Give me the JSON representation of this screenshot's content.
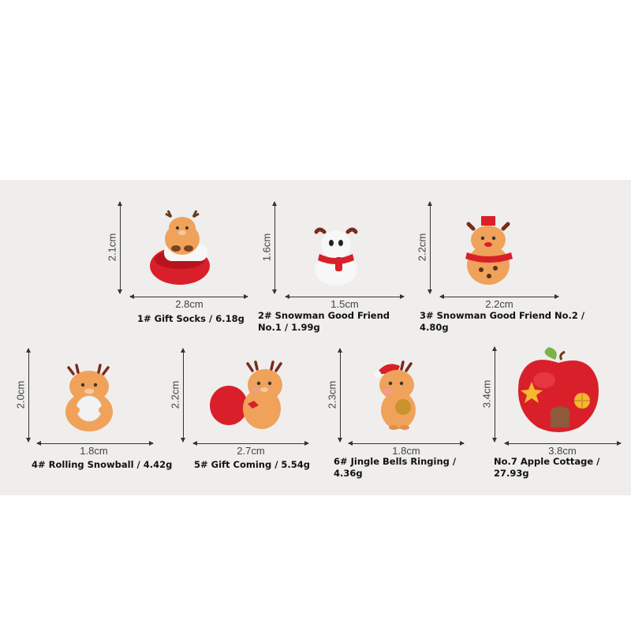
{
  "items": [
    {
      "height": "2.1cm",
      "width": "2.8cm",
      "caption": "1# Gift Socks / 6.18g",
      "icon": "reindeer-gift-socks-figurine"
    },
    {
      "height": "1.6cm",
      "width": "1.5cm",
      "caption": "2# Snowman Good Friend No.1 / 1.99g",
      "icon": "snowman-figurine"
    },
    {
      "height": "2.2cm",
      "width": "2.2cm",
      "caption": "3# Snowman Good Friend No.2 / 4.80g",
      "icon": "reindeer-scarf-figurine"
    },
    {
      "height": "2.0cm",
      "width": "1.8cm",
      "caption": "4# Rolling Snowball / 4.42g",
      "icon": "reindeer-snowball-figurine"
    },
    {
      "height": "2.2cm",
      "width": "2.7cm",
      "caption": "5# Gift Coming / 5.54g",
      "icon": "reindeer-gift-bag-figurine"
    },
    {
      "height": "2.3cm",
      "width": "1.8cm",
      "caption": "6# Jingle Bells Ringing / 4.36g",
      "icon": "reindeer-bell-figurine"
    },
    {
      "height": "3.4cm",
      "width": "3.8cm",
      "caption": "No.7 Apple Cottage / 27.93g",
      "icon": "apple-cottage-figurine"
    }
  ],
  "colors": {
    "panel": "#efeeec",
    "fur": "#f0a25a",
    "red": "#d9202a",
    "white": "#f7f7f7"
  }
}
